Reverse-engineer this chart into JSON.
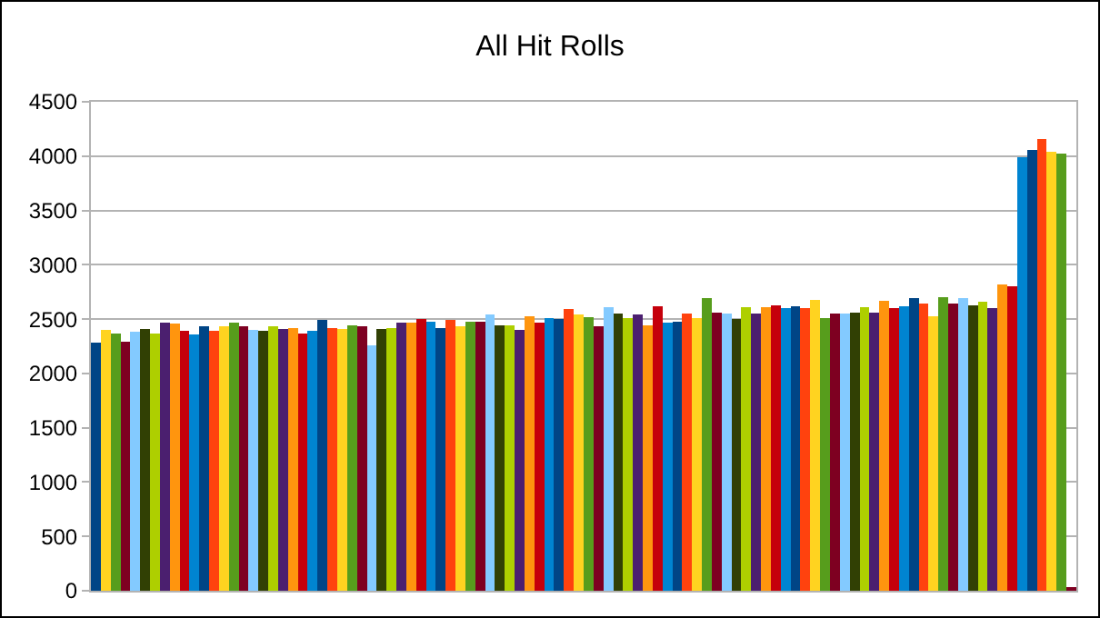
{
  "chart_data": {
    "type": "bar",
    "title": "All Hit Rolls",
    "categories": [
      null,
      null,
      null,
      null,
      null,
      null,
      null,
      null,
      null,
      null,
      null,
      null,
      null,
      null,
      null,
      null,
      null,
      null,
      null,
      null,
      null,
      null,
      null,
      null,
      null,
      null,
      null,
      null,
      null,
      null,
      null,
      null,
      null,
      null,
      null,
      null,
      null,
      null,
      null,
      null,
      null,
      null,
      null,
      null,
      null,
      null,
      null,
      null,
      null,
      null,
      null,
      null,
      null,
      null,
      null,
      null,
      null,
      null,
      null,
      null,
      null,
      null,
      null,
      null,
      null,
      null,
      null,
      null,
      null,
      null,
      null,
      null,
      null,
      null,
      null,
      null,
      null,
      null,
      null,
      null,
      null,
      null,
      null,
      null,
      null,
      null,
      null,
      null,
      null,
      null,
      null,
      null,
      null,
      null,
      null,
      null,
      null,
      null,
      null,
      null
    ],
    "values": [
      2280,
      2400,
      2370,
      2290,
      2380,
      2410,
      2370,
      2470,
      2460,
      2390,
      2360,
      2430,
      2390,
      2430,
      2470,
      2430,
      2400,
      2390,
      2430,
      2410,
      2420,
      2370,
      2390,
      2490,
      2420,
      2410,
      2440,
      2430,
      2260,
      2410,
      2420,
      2470,
      2470,
      2500,
      2480,
      2420,
      2490,
      2430,
      2480,
      2480,
      2540,
      2440,
      2440,
      2400,
      2530,
      2470,
      2510,
      2500,
      2590,
      2540,
      2520,
      2430,
      2610,
      2550,
      2510,
      2540,
      2440,
      2620,
      2470,
      2480,
      2550,
      2510,
      2690,
      2560,
      2550,
      2500,
      2610,
      2550,
      2610,
      2630,
      2600,
      2620,
      2600,
      2680,
      2510,
      2550,
      2550,
      2560,
      2610,
      2560,
      2670,
      2600,
      2620,
      2690,
      2640,
      2530,
      2700,
      2640,
      2690,
      2630,
      2660,
      2600,
      2820,
      2800,
      3990,
      4060,
      4160,
      4040,
      4020,
      30
    ],
    "colors": [
      "#004586",
      "#ffd320",
      "#579d1c",
      "#7e0021",
      "#83caff",
      "#314004",
      "#aecf00",
      "#4b1f6f",
      "#ff950e",
      "#c5000b",
      "#0084d1",
      "#004586",
      "#ff420e",
      "#ffd320",
      "#579d1c",
      "#7e0021",
      "#83caff",
      "#314004",
      "#aecf00",
      "#4b1f6f",
      "#ff950e",
      "#c5000b",
      "#0084d1",
      "#004586",
      "#ff420e",
      "#ffd320",
      "#579d1c",
      "#7e0021",
      "#83caff",
      "#314004",
      "#aecf00",
      "#4b1f6f",
      "#ff950e",
      "#c5000b",
      "#0084d1",
      "#004586",
      "#ff420e",
      "#ffd320",
      "#579d1c",
      "#7e0021",
      "#83caff",
      "#314004",
      "#aecf00",
      "#4b1f6f",
      "#ff950e",
      "#c5000b",
      "#0084d1",
      "#004586",
      "#ff420e",
      "#ffd320",
      "#579d1c",
      "#7e0021",
      "#83caff",
      "#314004",
      "#aecf00",
      "#4b1f6f",
      "#ff950e",
      "#c5000b",
      "#0084d1",
      "#004586",
      "#ff420e",
      "#ffd320",
      "#579d1c",
      "#7e0021",
      "#83caff",
      "#314004",
      "#aecf00",
      "#4b1f6f",
      "#ff950e",
      "#c5000b",
      "#0084d1",
      "#004586",
      "#ff420e",
      "#ffd320",
      "#579d1c",
      "#7e0021",
      "#83caff",
      "#314004",
      "#aecf00",
      "#4b1f6f",
      "#ff950e",
      "#c5000b",
      "#0084d1",
      "#004586",
      "#ff420e",
      "#ffd320",
      "#579d1c",
      "#7e0021",
      "#83caff",
      "#314004",
      "#aecf00",
      "#4b1f6f",
      "#ff950e",
      "#c5000b",
      "#0084d1",
      "#004586",
      "#ff420e",
      "#ffd320",
      "#579d1c",
      "#7e0021"
    ],
    "ylim": [
      0,
      4500
    ],
    "yticks": [
      0,
      500,
      1000,
      1500,
      2000,
      2500,
      3000,
      3500,
      4000,
      4500
    ],
    "grid": "y",
    "tick_labels": "y"
  }
}
